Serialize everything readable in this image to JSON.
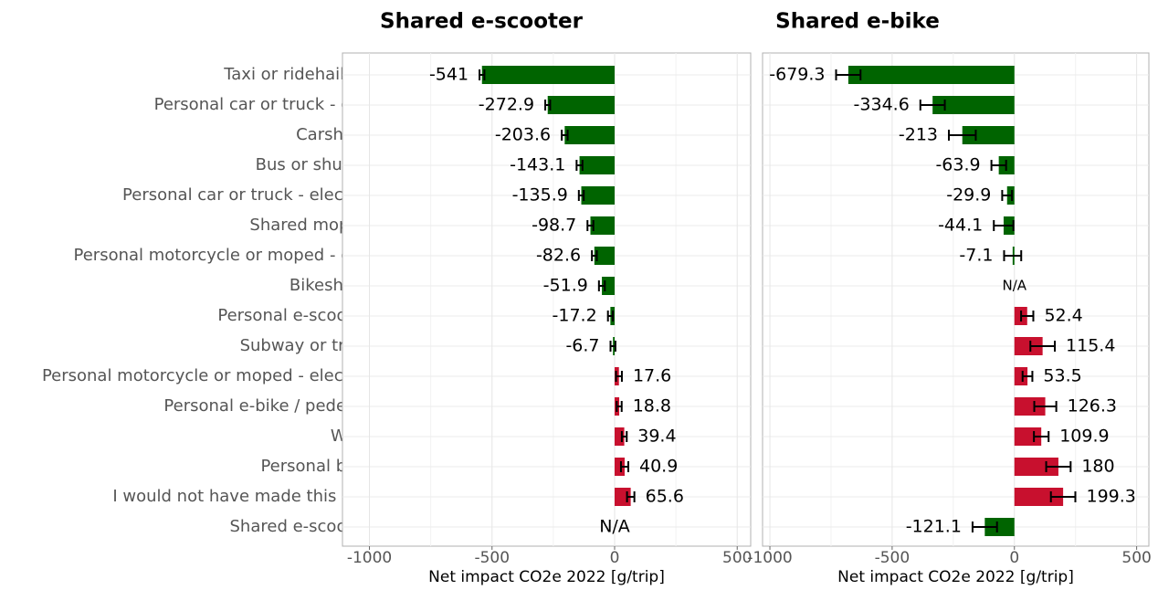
{
  "chart_data": [
    {
      "type": "bar",
      "orientation": "horizontal",
      "title": "Shared e-scooter",
      "x_label": "Net impact CO2e 2022 [g/trip]",
      "categories": [
        "Taxi or ridehailing",
        "Personal car or truck - gas",
        "Carshare",
        "Bus or shuttle",
        "Personal car or truck - electric",
        "Shared moped",
        "Personal motorcycle or moped - gas",
        "Bikeshare",
        "Personal e-scooter",
        "Subway or train",
        "Personal motorcycle or moped - electric",
        "Personal e-bike / pedelec",
        "Walk",
        "Personal bike",
        "I would not have made this trip",
        "Shared e-scooter"
      ],
      "values": [
        -541,
        -272.9,
        -203.6,
        -143.1,
        -135.9,
        -98.7,
        -82.6,
        -51.9,
        -17.2,
        -6.7,
        17.6,
        18.8,
        39.4,
        40.9,
        65.6,
        null
      ],
      "errors": [
        10,
        10,
        12,
        12,
        10,
        12,
        10,
        12,
        10,
        10,
        12,
        10,
        10,
        15,
        15,
        null
      ],
      "value_labels": [
        null,
        null,
        null,
        null,
        null,
        null,
        null,
        null,
        null,
        null,
        null,
        null,
        null,
        null,
        null,
        "N/A"
      ],
      "negative_color": "#006400",
      "positive_color": "#c8102e",
      "xlim": [
        -1110,
        555
      ],
      "xticks": [
        -1000,
        -500,
        0,
        500
      ],
      "minor_xticks": [
        -750,
        -250,
        250
      ],
      "grid": true
    },
    {
      "type": "bar",
      "orientation": "horizontal",
      "title": "Shared e-bike",
      "x_label": "Net impact CO2e 2022 [g/trip]",
      "values": [
        -679.3,
        -334.6,
        -213,
        -63.9,
        -29.9,
        -44.1,
        -7.1,
        null,
        52.4,
        115.4,
        53.5,
        126.3,
        109.9,
        180,
        199.3,
        -121.1
      ],
      "errors": [
        50,
        50,
        55,
        30,
        20,
        40,
        35,
        null,
        25,
        50,
        20,
        45,
        30,
        50,
        50,
        50
      ],
      "value_labels": [
        null,
        null,
        null,
        null,
        null,
        null,
        null,
        "N/A",
        null,
        null,
        null,
        null,
        null,
        null,
        null,
        null
      ],
      "negative_color": "#006400",
      "positive_color": "#c8102e",
      "xlim": [
        -1030,
        550
      ],
      "xticks": [
        -1000,
        -500,
        0,
        500
      ],
      "minor_xticks": [
        -750,
        -250,
        250
      ],
      "grid": true
    }
  ]
}
